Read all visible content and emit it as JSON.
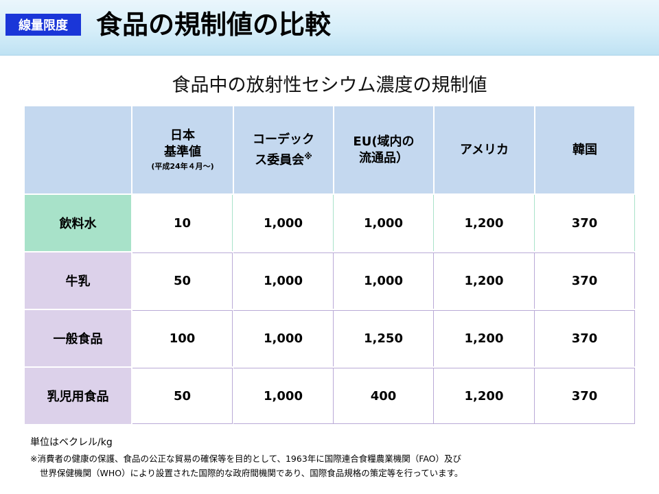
{
  "header": {
    "badge": "線量限度",
    "title": "食品の規制値の比較"
  },
  "subtitle": "食品中の放射性セシウム濃度の規制値",
  "table": {
    "columns": [
      {
        "line1": "日本",
        "line2": "基準値",
        "note": "(平成24年４月～)"
      },
      {
        "line1": "コーデック",
        "line2": "ス委員会",
        "mark": "※"
      },
      {
        "line1": "EU(域内の",
        "line2": "流通品）"
      },
      {
        "line1": "アメリカ"
      },
      {
        "line1": "韓国"
      }
    ],
    "rows": [
      {
        "label": "飲料水",
        "color": "#a8e2c9",
        "values": [
          "10",
          "1,000",
          "1,000",
          "1,200",
          "370"
        ]
      },
      {
        "label": "牛乳",
        "color": "#dcd1ea",
        "values": [
          "50",
          "1,000",
          "1,000",
          "1,200",
          "370"
        ]
      },
      {
        "label": "一般食品",
        "color": "#dcd1ea",
        "values": [
          "100",
          "1,000",
          "1,250",
          "1,200",
          "370"
        ]
      },
      {
        "label": "乳児用食品",
        "color": "#dcd1ea",
        "values": [
          "50",
          "1,000",
          "400",
          "1,200",
          "370"
        ]
      }
    ],
    "header_color": "#c4d8ef"
  },
  "notes": {
    "unit": "単位はベクレル/kg",
    "footnote_line1": "※消費者の健康の保護、食品の公正な貿易の確保等を目的として、1963年に国際連合食糧農業機関（FAO）及び",
    "footnote_line2": "世界保健機関（WHO）により設置された国際的な政府間機関であり、国際食品規格の策定等を行っています。"
  }
}
